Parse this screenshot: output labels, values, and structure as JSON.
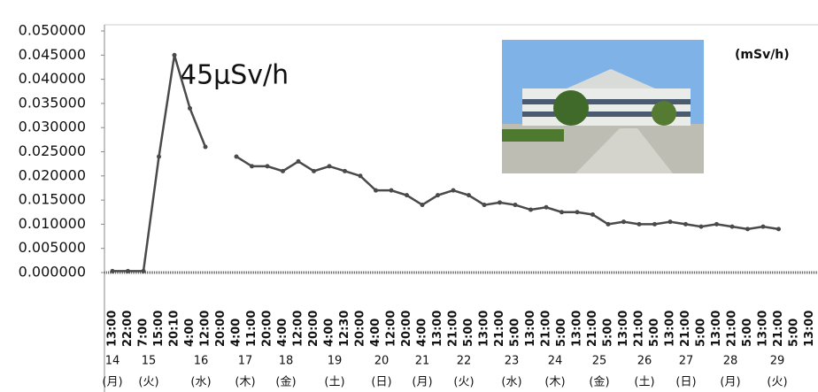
{
  "chart_data": {
    "type": "line",
    "annotation": "45μSv/h",
    "unit": "(mSv/h)",
    "ylim": [
      0,
      0.05
    ],
    "yticks": [
      {
        "value": 0.05,
        "label": "0.050000"
      },
      {
        "value": 0.045,
        "label": "0.045000"
      },
      {
        "value": 0.04,
        "label": "0.040000"
      },
      {
        "value": 0.035,
        "label": "0.035000"
      },
      {
        "value": 0.03,
        "label": "0.030000"
      },
      {
        "value": 0.025,
        "label": "0.025000"
      },
      {
        "value": 0.02,
        "label": "0.020000"
      },
      {
        "value": 0.015,
        "label": "0.015000"
      },
      {
        "value": 0.01,
        "label": "0.010000"
      },
      {
        "value": 0.005,
        "label": "0.005000"
      },
      {
        "value": 0,
        "label": "0.000000"
      }
    ],
    "categories": [
      "13:00",
      "22:00",
      "7:00",
      "15:00",
      "20:10",
      "4:00",
      "12:00",
      "20:00",
      "4:00",
      "11:00",
      "20:00",
      "4:00",
      "12:00",
      "20:00",
      "4:00",
      "12:30",
      "20:00",
      "4:00",
      "12:00",
      "20:00",
      "4:00",
      "13:00",
      "21:00",
      "5:00",
      "13:00",
      "21:00",
      "5:00",
      "13:00",
      "21:00",
      "5:00",
      "13:00",
      "21:00",
      "5:00",
      "13:00",
      "21:00",
      "5:00",
      "13:00",
      "21:00",
      "5:00",
      "13:00",
      "21:00",
      "5:00",
      "13:00",
      "21:00",
      "5:00",
      "13:00"
    ],
    "series": [
      {
        "color": "#4a4a4a",
        "values": [
          0.0003,
          0.0003,
          0.0003,
          0.024,
          0.045,
          0.034,
          0.026,
          null,
          0.024,
          0.022,
          0.022,
          0.021,
          0.023,
          0.021,
          0.022,
          0.021,
          0.02,
          0.017,
          0.017,
          0.016,
          0.014,
          0.016,
          0.017,
          0.016,
          0.014,
          0.0145,
          0.014,
          0.013,
          0.0135,
          0.0125,
          0.0125,
          0.012,
          0.01,
          0.0105,
          0.01,
          0.01,
          0.0105,
          0.01,
          0.0095,
          0.01,
          0.0095,
          0.009,
          0.0095,
          0.009,
          null,
          null
        ]
      }
    ],
    "days": [
      {
        "day": "14",
        "weekday": "(月)"
      },
      {
        "day": "15",
        "weekday": "(火)"
      },
      {
        "day": "16",
        "weekday": "(水)"
      },
      {
        "day": "17",
        "weekday": "(木)"
      },
      {
        "day": "18",
        "weekday": "(金)"
      },
      {
        "day": "19",
        "weekday": "(土)"
      },
      {
        "day": "20",
        "weekday": "(日)"
      },
      {
        "day": "21",
        "weekday": "(月)"
      },
      {
        "day": "22",
        "weekday": "(火)"
      },
      {
        "day": "23",
        "weekday": "(水)"
      },
      {
        "day": "24",
        "weekday": "(木)"
      },
      {
        "day": "25",
        "weekday": "(金)"
      },
      {
        "day": "26",
        "weekday": "(土)"
      },
      {
        "day": "27",
        "weekday": "(日)"
      },
      {
        "day": "28",
        "weekday": "(月)"
      },
      {
        "day": "29",
        "weekday": "(火)"
      }
    ]
  }
}
